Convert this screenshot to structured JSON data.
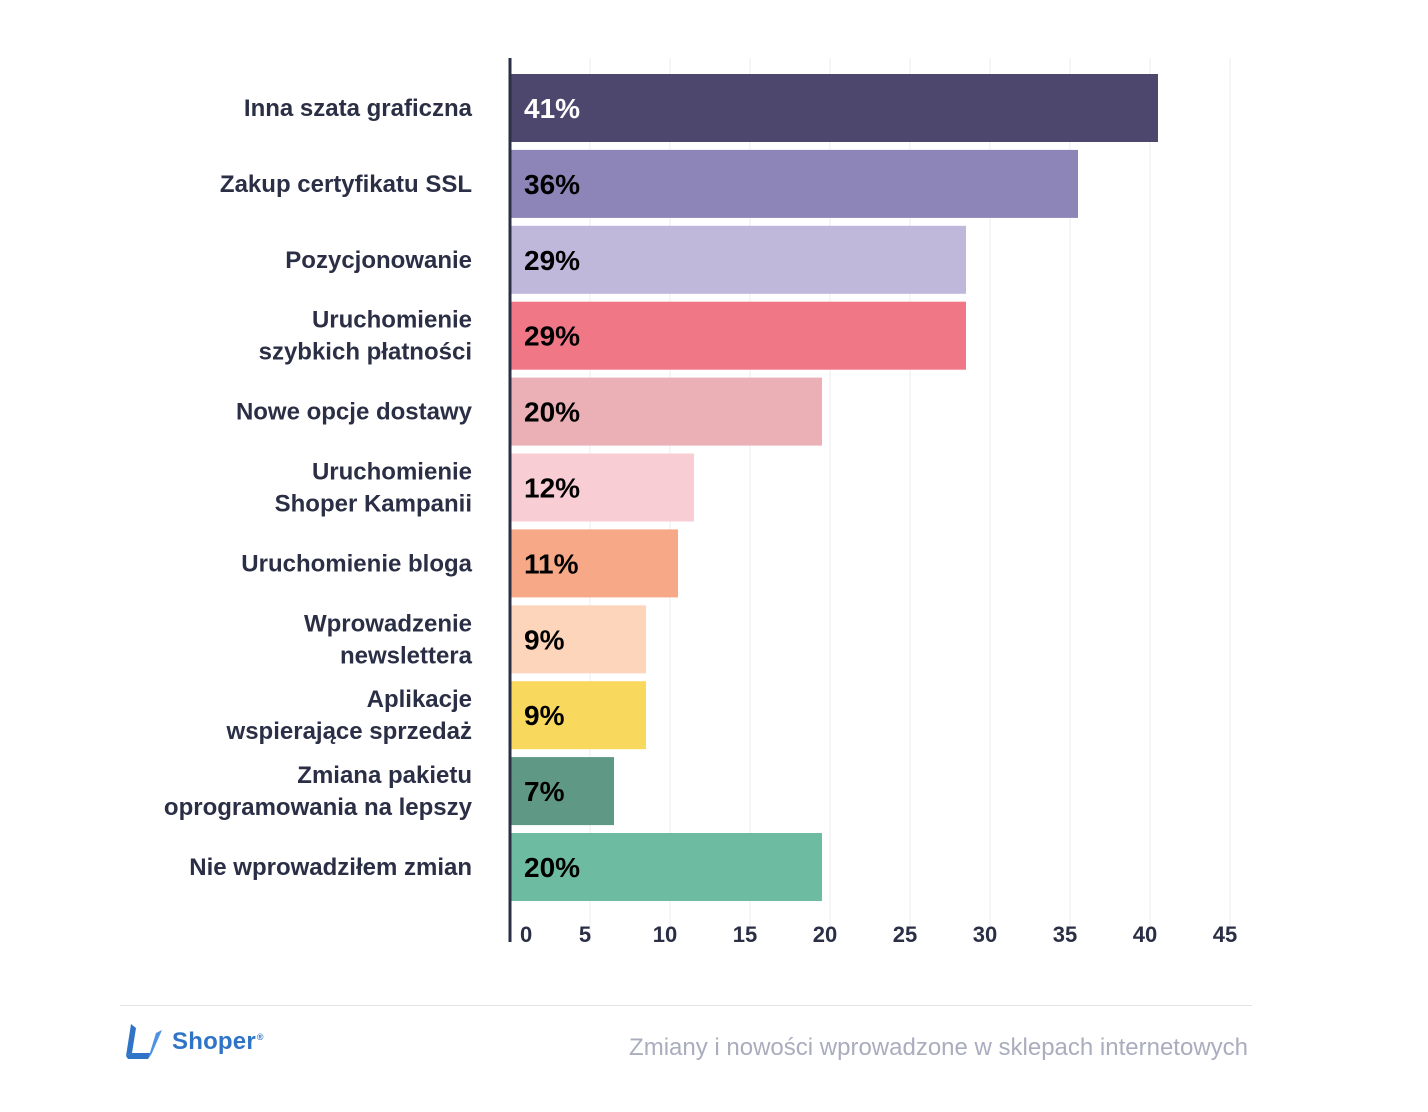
{
  "chart_data": {
    "type": "bar",
    "orientation": "horizontal",
    "categories": [
      [
        "Inna szata graficzna"
      ],
      [
        "Zakup certyfikatu SSL"
      ],
      [
        "Pozycjonowanie"
      ],
      [
        "Uruchomienie",
        "szybkich płatności"
      ],
      [
        "Nowe opcje dostawy"
      ],
      [
        "Uruchomienie",
        "Shoper Kampanii"
      ],
      [
        "Uruchomienie bloga"
      ],
      [
        "Wprowadzenie",
        "newslettera"
      ],
      [
        "Aplikacje",
        "wspierające sprzedaż"
      ],
      [
        "Zmiana pakietu",
        "oprogramowania na lepszy"
      ],
      [
        "Nie wprowadziłem zmian"
      ]
    ],
    "values": [
      41,
      36,
      29,
      29,
      20,
      12,
      11,
      9,
      9,
      7,
      20
    ],
    "data_labels": [
      "41%",
      "36%",
      "29%",
      "29%",
      "20%",
      "12%",
      "11%",
      "9%",
      "9%",
      "7%",
      "20%"
    ],
    "bar_colors": [
      "#4d476e",
      "#8d84b8",
      "#c0b8db",
      "#f07886",
      "#eab0b6",
      "#f9cdd4",
      "#f7a987",
      "#fdd5ba",
      "#f8d95e",
      "#5f9884",
      "#6dbca1"
    ],
    "label_colors": [
      "#ffffff",
      "#000000",
      "#000000",
      "#000000",
      "#000000",
      "#000000",
      "#000000",
      "#000000",
      "#000000",
      "#000000",
      "#000000"
    ],
    "x_ticks": [
      "0",
      "5",
      "10",
      "15",
      "20",
      "25",
      "30",
      "35",
      "40",
      "45"
    ],
    "xlim": [
      0,
      45
    ],
    "grid": true,
    "axis_color": "#2b2f45",
    "grid_color": "#ececf0"
  },
  "footer": {
    "logo_text": "Shoper",
    "logo_mark": "shoper-logo-icon",
    "logo_color": "#2f74c6",
    "caption": "Zmiany i nowości wprowadzone w sklepach internetowych"
  }
}
